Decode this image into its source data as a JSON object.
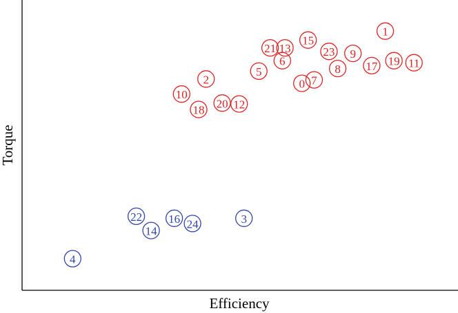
{
  "chart_data": {
    "type": "scatter",
    "xlabel": "Efficiency",
    "ylabel": "Torque",
    "xlim": [
      0,
      10
    ],
    "ylim": [
      0,
      10
    ],
    "grid": false,
    "colors": {
      "cluster_a": "#dd2222",
      "cluster_b": "#3344aa"
    },
    "points": [
      {
        "label": "0",
        "x": 6.42,
        "y": 7.13,
        "group": "cluster_a"
      },
      {
        "label": "1",
        "x": 8.33,
        "y": 8.93,
        "group": "cluster_a"
      },
      {
        "label": "2",
        "x": 4.22,
        "y": 7.28,
        "group": "cluster_a"
      },
      {
        "label": "3",
        "x": 5.09,
        "y": 2.48,
        "group": "cluster_b"
      },
      {
        "label": "4",
        "x": 1.16,
        "y": 1.09,
        "group": "cluster_b"
      },
      {
        "label": "5",
        "x": 5.43,
        "y": 7.55,
        "group": "cluster_a"
      },
      {
        "label": "6",
        "x": 5.97,
        "y": 7.91,
        "group": "cluster_a"
      },
      {
        "label": "7",
        "x": 6.7,
        "y": 7.25,
        "group": "cluster_a"
      },
      {
        "label": "8",
        "x": 7.24,
        "y": 7.64,
        "group": "cluster_a"
      },
      {
        "label": "9",
        "x": 7.59,
        "y": 8.16,
        "group": "cluster_a"
      },
      {
        "label": "10",
        "x": 3.66,
        "y": 6.76,
        "group": "cluster_a"
      },
      {
        "label": "11",
        "x": 8.99,
        "y": 7.84,
        "group": "cluster_a"
      },
      {
        "label": "12",
        "x": 4.98,
        "y": 6.42,
        "group": "cluster_a"
      },
      {
        "label": "13",
        "x": 6.03,
        "y": 8.35,
        "group": "cluster_a"
      },
      {
        "label": "14",
        "x": 2.96,
        "y": 2.06,
        "group": "cluster_b"
      },
      {
        "label": "15",
        "x": 6.56,
        "y": 8.62,
        "group": "cluster_a"
      },
      {
        "label": "16",
        "x": 3.49,
        "y": 2.48,
        "group": "cluster_b"
      },
      {
        "label": "17",
        "x": 8.02,
        "y": 7.74,
        "group": "cluster_a"
      },
      {
        "label": "18",
        "x": 4.05,
        "y": 6.23,
        "group": "cluster_a"
      },
      {
        "label": "19",
        "x": 8.53,
        "y": 7.91,
        "group": "cluster_a"
      },
      {
        "label": "20",
        "x": 4.59,
        "y": 6.45,
        "group": "cluster_a"
      },
      {
        "label": "21",
        "x": 5.69,
        "y": 8.35,
        "group": "cluster_a"
      },
      {
        "label": "22",
        "x": 2.62,
        "y": 2.55,
        "group": "cluster_b"
      },
      {
        "label": "23",
        "x": 7.04,
        "y": 8.23,
        "group": "cluster_a"
      },
      {
        "label": "24",
        "x": 3.91,
        "y": 2.3,
        "group": "cluster_b"
      }
    ]
  }
}
